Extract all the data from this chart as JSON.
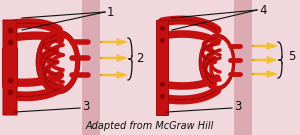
{
  "bg_color": "#f0d8dc",
  "vessel_color": "#c41010",
  "vessel_dark": "#8b0000",
  "vessel_light": "#e03030",
  "pink_band_color": "#dbaab2",
  "arrow_color": "#d4920a",
  "arrow_color2": "#f0c030",
  "label_color": "#111111",
  "credit_text": "Adapted from McGraw Hill",
  "credit_fontsize": 7.0,
  "label_fontsize": 8.5,
  "figsize": [
    3.0,
    1.35
  ],
  "dpi": 100,
  "lw_main": 7.0,
  "lw_cap": 3.5,
  "lw_small": 2.0
}
